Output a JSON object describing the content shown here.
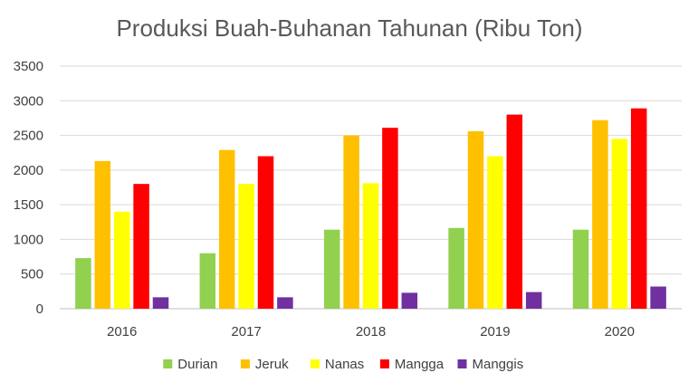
{
  "chart_data": {
    "type": "bar",
    "title": "Produksi Buah-Buhanan Tahunan (Ribu Ton)",
    "xlabel": "",
    "ylabel": "",
    "categories": [
      "2016",
      "2017",
      "2018",
      "2019",
      "2020"
    ],
    "ylim": [
      0,
      3500
    ],
    "yticks": [
      0,
      500,
      1000,
      1500,
      2000,
      2500,
      3000,
      3500
    ],
    "grid": true,
    "legend_position": "bottom",
    "series": [
      {
        "name": "Durian",
        "color": "#92d050",
        "values": [
          730,
          800,
          1140,
          1165,
          1140
        ]
      },
      {
        "name": "Jeruk",
        "color": "#ffc000",
        "values": [
          2130,
          2290,
          2500,
          2560,
          2720
        ]
      },
      {
        "name": "Nanas",
        "color": "#ffff00",
        "values": [
          1400,
          1800,
          1810,
          2200,
          2450
        ]
      },
      {
        "name": "Mangga",
        "color": "#ff0000",
        "values": [
          1800,
          2200,
          2610,
          2800,
          2890
        ]
      },
      {
        "name": "Manggis",
        "color": "#7030a0",
        "values": [
          165,
          165,
          230,
          240,
          320
        ]
      }
    ]
  }
}
